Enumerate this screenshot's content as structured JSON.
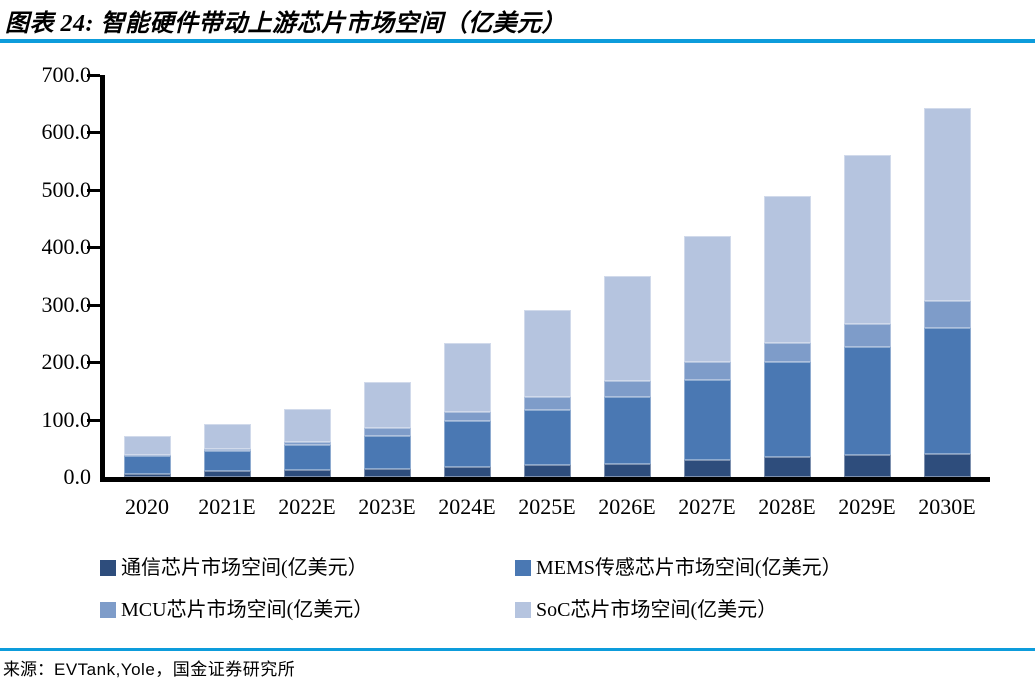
{
  "header": {
    "title": "图表 24: 智能硬件带动上游芯片市场空间（亿美元）"
  },
  "accent": {
    "rule_color": "#0d9cdb"
  },
  "source": {
    "prefix": "来源：",
    "text": "EVTank,Yole，国金证券研究所"
  },
  "chart_data": {
    "type": "bar",
    "stacked": true,
    "title": "图表 24: 智能硬件带动上游芯片市场空间（亿美元）",
    "xlabel": "",
    "ylabel": "",
    "ylim": [
      0,
      700
    ],
    "ytick_labels": [
      "0.0",
      "100.0",
      "200.0",
      "300.0",
      "400.0",
      "500.0",
      "600.0",
      "700.0"
    ],
    "ytick_values": [
      0,
      100,
      200,
      300,
      400,
      500,
      600,
      700
    ],
    "grid": false,
    "legend_position": "bottom",
    "categories": [
      "2020",
      "2021E",
      "2022E",
      "2023E",
      "2024E",
      "2025E",
      "2026E",
      "2027E",
      "2028E",
      "2029E",
      "2030E"
    ],
    "series": [
      {
        "name": "通信芯片市场空间(亿美元）",
        "color": "#2e4d7c",
        "values": [
          6,
          11,
          12,
          14,
          18,
          21,
          22,
          29,
          34,
          38,
          40
        ]
      },
      {
        "name": "MEMS传感芯片市场空间(亿美元）",
        "color": "#4a78b3",
        "values": [
          30,
          34,
          44,
          57,
          80,
          96,
          117,
          140,
          167,
          189,
          220
        ]
      },
      {
        "name": "MCU芯片市场空间(亿美元）",
        "color": "#7e9cc9",
        "values": [
          3,
          4,
          5,
          14,
          16,
          22,
          29,
          31,
          33,
          39,
          46
        ]
      },
      {
        "name": "SoC芯片市场空间(亿美元）",
        "color": "#b5c4df",
        "values": [
          32,
          43,
          57,
          80,
          120,
          151,
          182,
          220,
          256,
          294,
          336
        ]
      }
    ],
    "totals": [
      71,
      92,
      118,
      165,
      234,
      290,
      350,
      420,
      490,
      560,
      642
    ]
  }
}
